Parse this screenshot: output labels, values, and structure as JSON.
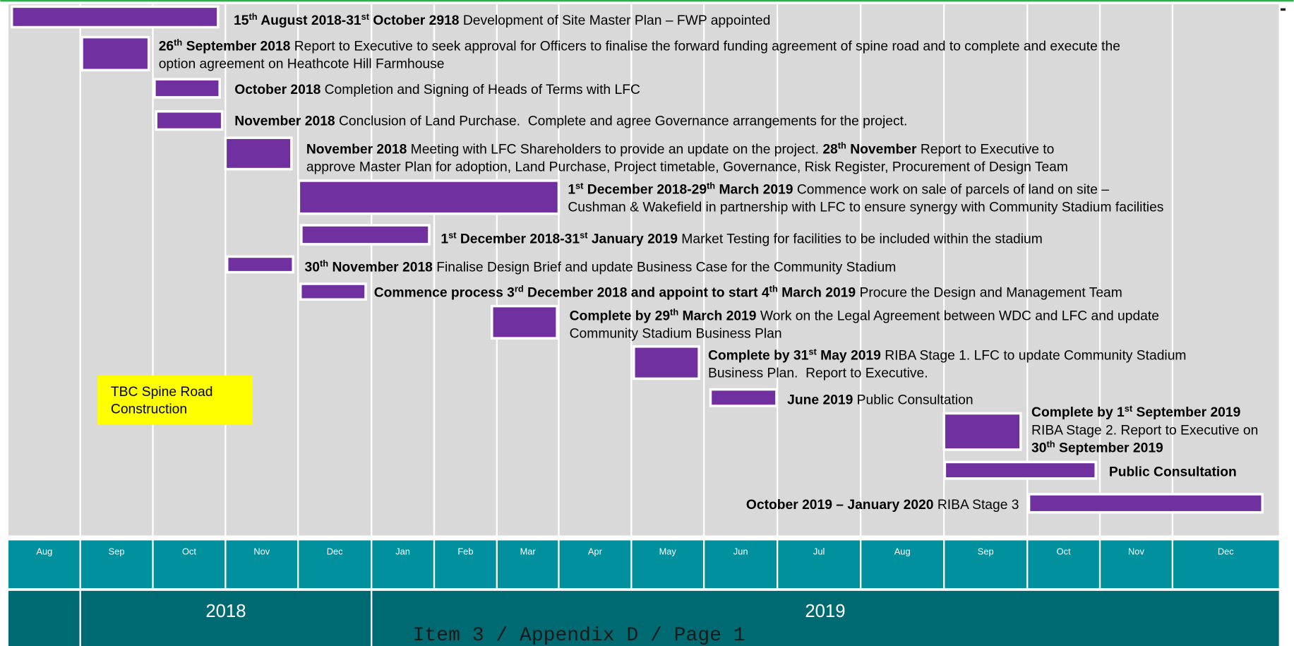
{
  "tasks": [
    {
      "lines": [
        [
          {
            "text": "15",
            "bold": true
          },
          {
            "text": "th",
            "bold": true,
            "sup": true
          },
          {
            "text": " August 2018-31",
            "bold": true
          },
          {
            "text": "st",
            "bold": true,
            "sup": true
          },
          {
            "text": " October 2918",
            "bold": true
          },
          {
            "text": " Development of Site Master Plan – FWP appointed"
          }
        ]
      ]
    },
    {
      "lines": [
        [
          {
            "text": "26",
            "bold": true
          },
          {
            "text": "th",
            "bold": true,
            "sup": true
          },
          {
            "text": " September 2018",
            "bold": true
          },
          {
            "text": " Report to Executive to seek approval for Officers to finalise the forward funding agreement of spine road and to complete and execute the"
          }
        ],
        [
          {
            "text": "option agreement on Heathcote Hill Farmhouse"
          }
        ]
      ]
    },
    {
      "lines": [
        [
          {
            "text": "October 2018",
            "bold": true
          },
          {
            "text": " Completion and Signing of Heads of Terms with LFC"
          }
        ]
      ]
    },
    {
      "lines": [
        [
          {
            "text": "November 2018",
            "bold": true
          },
          {
            "text": " Conclusion of Land Purchase.  Complete and agree Governance arrangements for the project."
          }
        ]
      ]
    },
    {
      "lines": [
        [
          {
            "text": "November 2018",
            "bold": true
          },
          {
            "text": " Meeting with LFC Shareholders to provide an update on the project. "
          },
          {
            "text": "28",
            "bold": true
          },
          {
            "text": "th",
            "bold": true,
            "sup": true
          },
          {
            "text": " November",
            "bold": true
          },
          {
            "text": " Report to Executive to"
          }
        ],
        [
          {
            "text": "approve Master Plan for adoption, Land Purchase, Project timetable, Governance, Risk Register, Procurement of Design Team"
          }
        ]
      ]
    },
    {
      "lines": [
        [
          {
            "text": "1",
            "bold": true
          },
          {
            "text": "st",
            "bold": true,
            "sup": true
          },
          {
            "text": " December 2018-29",
            "bold": true
          },
          {
            "text": "th",
            "bold": true,
            "sup": true
          },
          {
            "text": " March 2019",
            "bold": true
          },
          {
            "text": " Commence work on sale of parcels of land on site –"
          }
        ],
        [
          {
            "text": "Cushman & Wakefield in partnership with LFC to ensure synergy with Community Stadium facilities"
          }
        ]
      ]
    },
    {
      "lines": [
        [
          {
            "text": "1",
            "bold": true
          },
          {
            "text": "st",
            "bold": true,
            "sup": true
          },
          {
            "text": " December 2018-31",
            "bold": true
          },
          {
            "text": "st",
            "bold": true,
            "sup": true
          },
          {
            "text": " January 2019",
            "bold": true
          },
          {
            "text": " Market Testing for facilities to be included within the stadium"
          }
        ]
      ]
    },
    {
      "lines": [
        [
          {
            "text": "30",
            "bold": true
          },
          {
            "text": "th",
            "bold": true,
            "sup": true
          },
          {
            "text": " November 2018",
            "bold": true
          },
          {
            "text": " Finalise Design Brief and update Business Case for the Community Stadium"
          }
        ]
      ]
    },
    {
      "lines": [
        [
          {
            "text": "Commence process 3",
            "bold": true
          },
          {
            "text": "rd",
            "bold": true,
            "sup": true
          },
          {
            "text": " December 2018 and appoint to start 4",
            "bold": true
          },
          {
            "text": "th",
            "bold": true,
            "sup": true
          },
          {
            "text": " March 2019",
            "bold": true
          },
          {
            "text": " Procure the Design and Management Team"
          }
        ]
      ]
    },
    {
      "lines": [
        [
          {
            "text": "Complete by 29",
            "bold": true
          },
          {
            "text": "th",
            "bold": true,
            "sup": true
          },
          {
            "text": " March 2019",
            "bold": true
          },
          {
            "text": " Work on the Legal Agreement between WDC and LFC and update"
          }
        ],
        [
          {
            "text": "Community Stadium Business Plan"
          }
        ]
      ]
    },
    {
      "lines": [
        [
          {
            "text": "Complete by 31",
            "bold": true
          },
          {
            "text": "st",
            "bold": true,
            "sup": true
          },
          {
            "text": " May 2019",
            "bold": true
          },
          {
            "text": " RIBA Stage 1. LFC to update Community Stadium"
          }
        ],
        [
          {
            "text": "Business Plan.  Report to Executive."
          }
        ]
      ]
    },
    {
      "lines": [
        [
          {
            "text": "June 2019",
            "bold": true
          },
          {
            "text": " Public Consultation"
          }
        ]
      ]
    },
    {
      "lines": [
        [
          {
            "text": "Complete by 1",
            "bold": true
          },
          {
            "text": "st",
            "bold": true,
            "sup": true
          },
          {
            "text": " September 2019",
            "bold": true
          }
        ],
        [
          {
            "text": "RIBA Stage 2. Report to Executive on"
          }
        ],
        [
          {
            "text": "30",
            "bold": true
          },
          {
            "text": "th",
            "bold": true,
            "sup": true
          },
          {
            "text": " September 2019",
            "bold": true
          }
        ]
      ]
    },
    {
      "lines": [
        [
          {
            "text": "Public Consultation",
            "bold": true
          }
        ]
      ]
    },
    {
      "lines": [
        [
          {
            "text": "October 2019 – January 2020",
            "bold": true
          },
          {
            "text": " RIBA Stage 3"
          }
        ]
      ]
    }
  ],
  "note": {
    "lines": [
      "TBC Spine Road",
      "Construction"
    ]
  },
  "months": [
    "Aug",
    "Sep",
    "Oct",
    "Nov",
    "Dec",
    "Jan",
    "Feb",
    "Mar",
    "Apr",
    "May",
    "Jun",
    "Jul",
    "Aug",
    "Sep",
    "Oct",
    "Nov",
    "Dec"
  ],
  "years": [
    "2018",
    "2019"
  ],
  "footer": "Item 3 / Appendix D / Page 1"
}
